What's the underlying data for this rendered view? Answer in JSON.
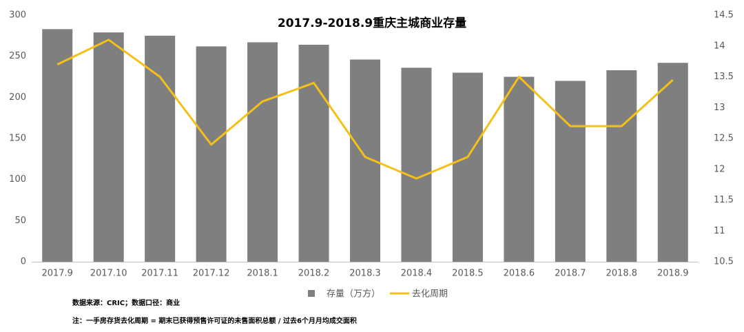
{
  "chart_data": {
    "type": "bar-line",
    "title": "2017.9-2018.9重庆主城商业存量",
    "categories": [
      "2017.9",
      "2017.10",
      "2017.11",
      "2017.12",
      "2018.1",
      "2018.2",
      "2018.3",
      "2018.4",
      "2018.5",
      "2018.6",
      "2018.7",
      "2018.8",
      "2018.9"
    ],
    "series": [
      {
        "name": "存量（万方）",
        "color": "#7f7f7f",
        "values": [
          283,
          279,
          275,
          262,
          267,
          264,
          246,
          236,
          230,
          225,
          220,
          233,
          242
        ]
      },
      {
        "name": "去化周期",
        "color": "#f5c018",
        "axis": "y2",
        "values": [
          13.7,
          14.1,
          13.5,
          12.4,
          13.1,
          13.4,
          12.2,
          11.85,
          12.2,
          13.5,
          12.7,
          12.7,
          13.45
        ]
      }
    ],
    "ylim": [
      0,
      300
    ],
    "yticks": [
      0,
      50,
      100,
      150,
      200,
      250,
      300
    ],
    "y2lim": [
      10.5,
      14.5
    ],
    "y2ticks": [
      10.5,
      11,
      11.5,
      12,
      12.5,
      13,
      13.5,
      14,
      14.5
    ],
    "grid": false,
    "source": "数据来源：CRIC；数据口径：商业",
    "note": "注：一手房存货去化周期 = 期末已获得预售许可证的未售面积总额 / 过去6个月月均成交面积"
  }
}
